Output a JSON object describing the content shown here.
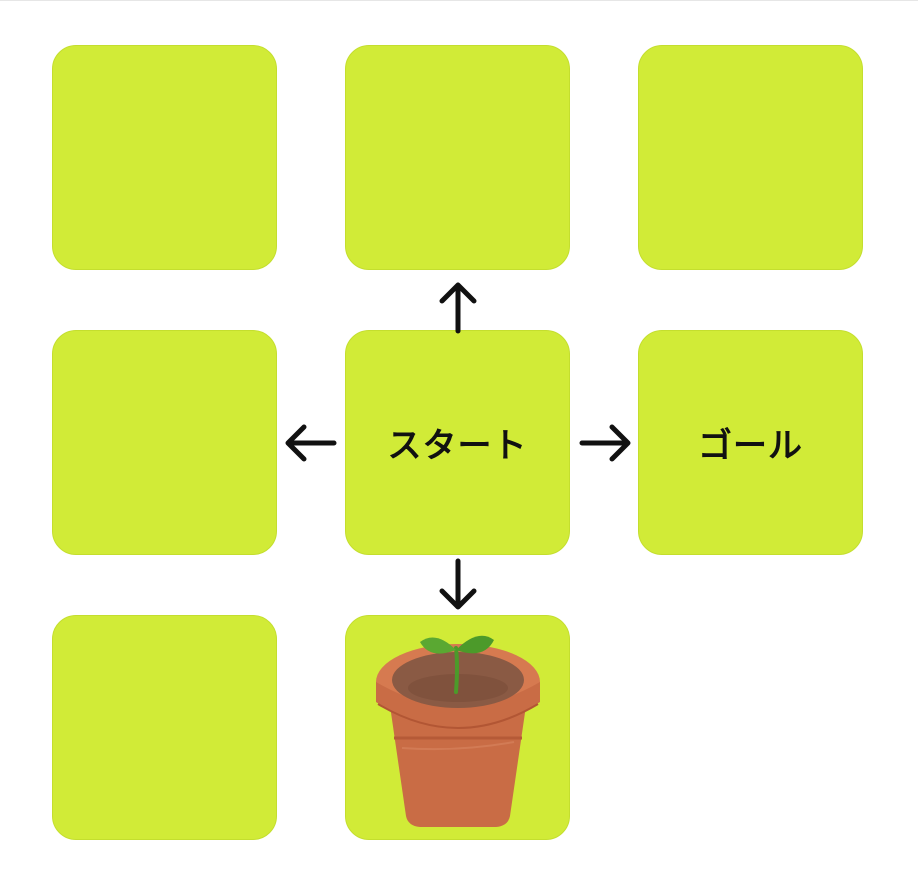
{
  "colors": {
    "tile": "#d1eb37",
    "arrow": "#111111",
    "pot": "#c96c45",
    "soil": "#8a5a44",
    "sprout": "#4c9a2a"
  },
  "tiles": [
    {
      "id": "r1c1",
      "label": ""
    },
    {
      "id": "r1c2",
      "label": ""
    },
    {
      "id": "r1c3",
      "label": ""
    },
    {
      "id": "r2c1",
      "label": ""
    },
    {
      "id": "r2c2",
      "label": "スタート"
    },
    {
      "id": "r2c3",
      "label": "ゴール"
    },
    {
      "id": "r3c1",
      "label": ""
    },
    {
      "id": "r3c2",
      "label": "",
      "icon": "potted-sprout-icon"
    }
  ],
  "arrows": [
    "up",
    "left",
    "right",
    "down"
  ]
}
